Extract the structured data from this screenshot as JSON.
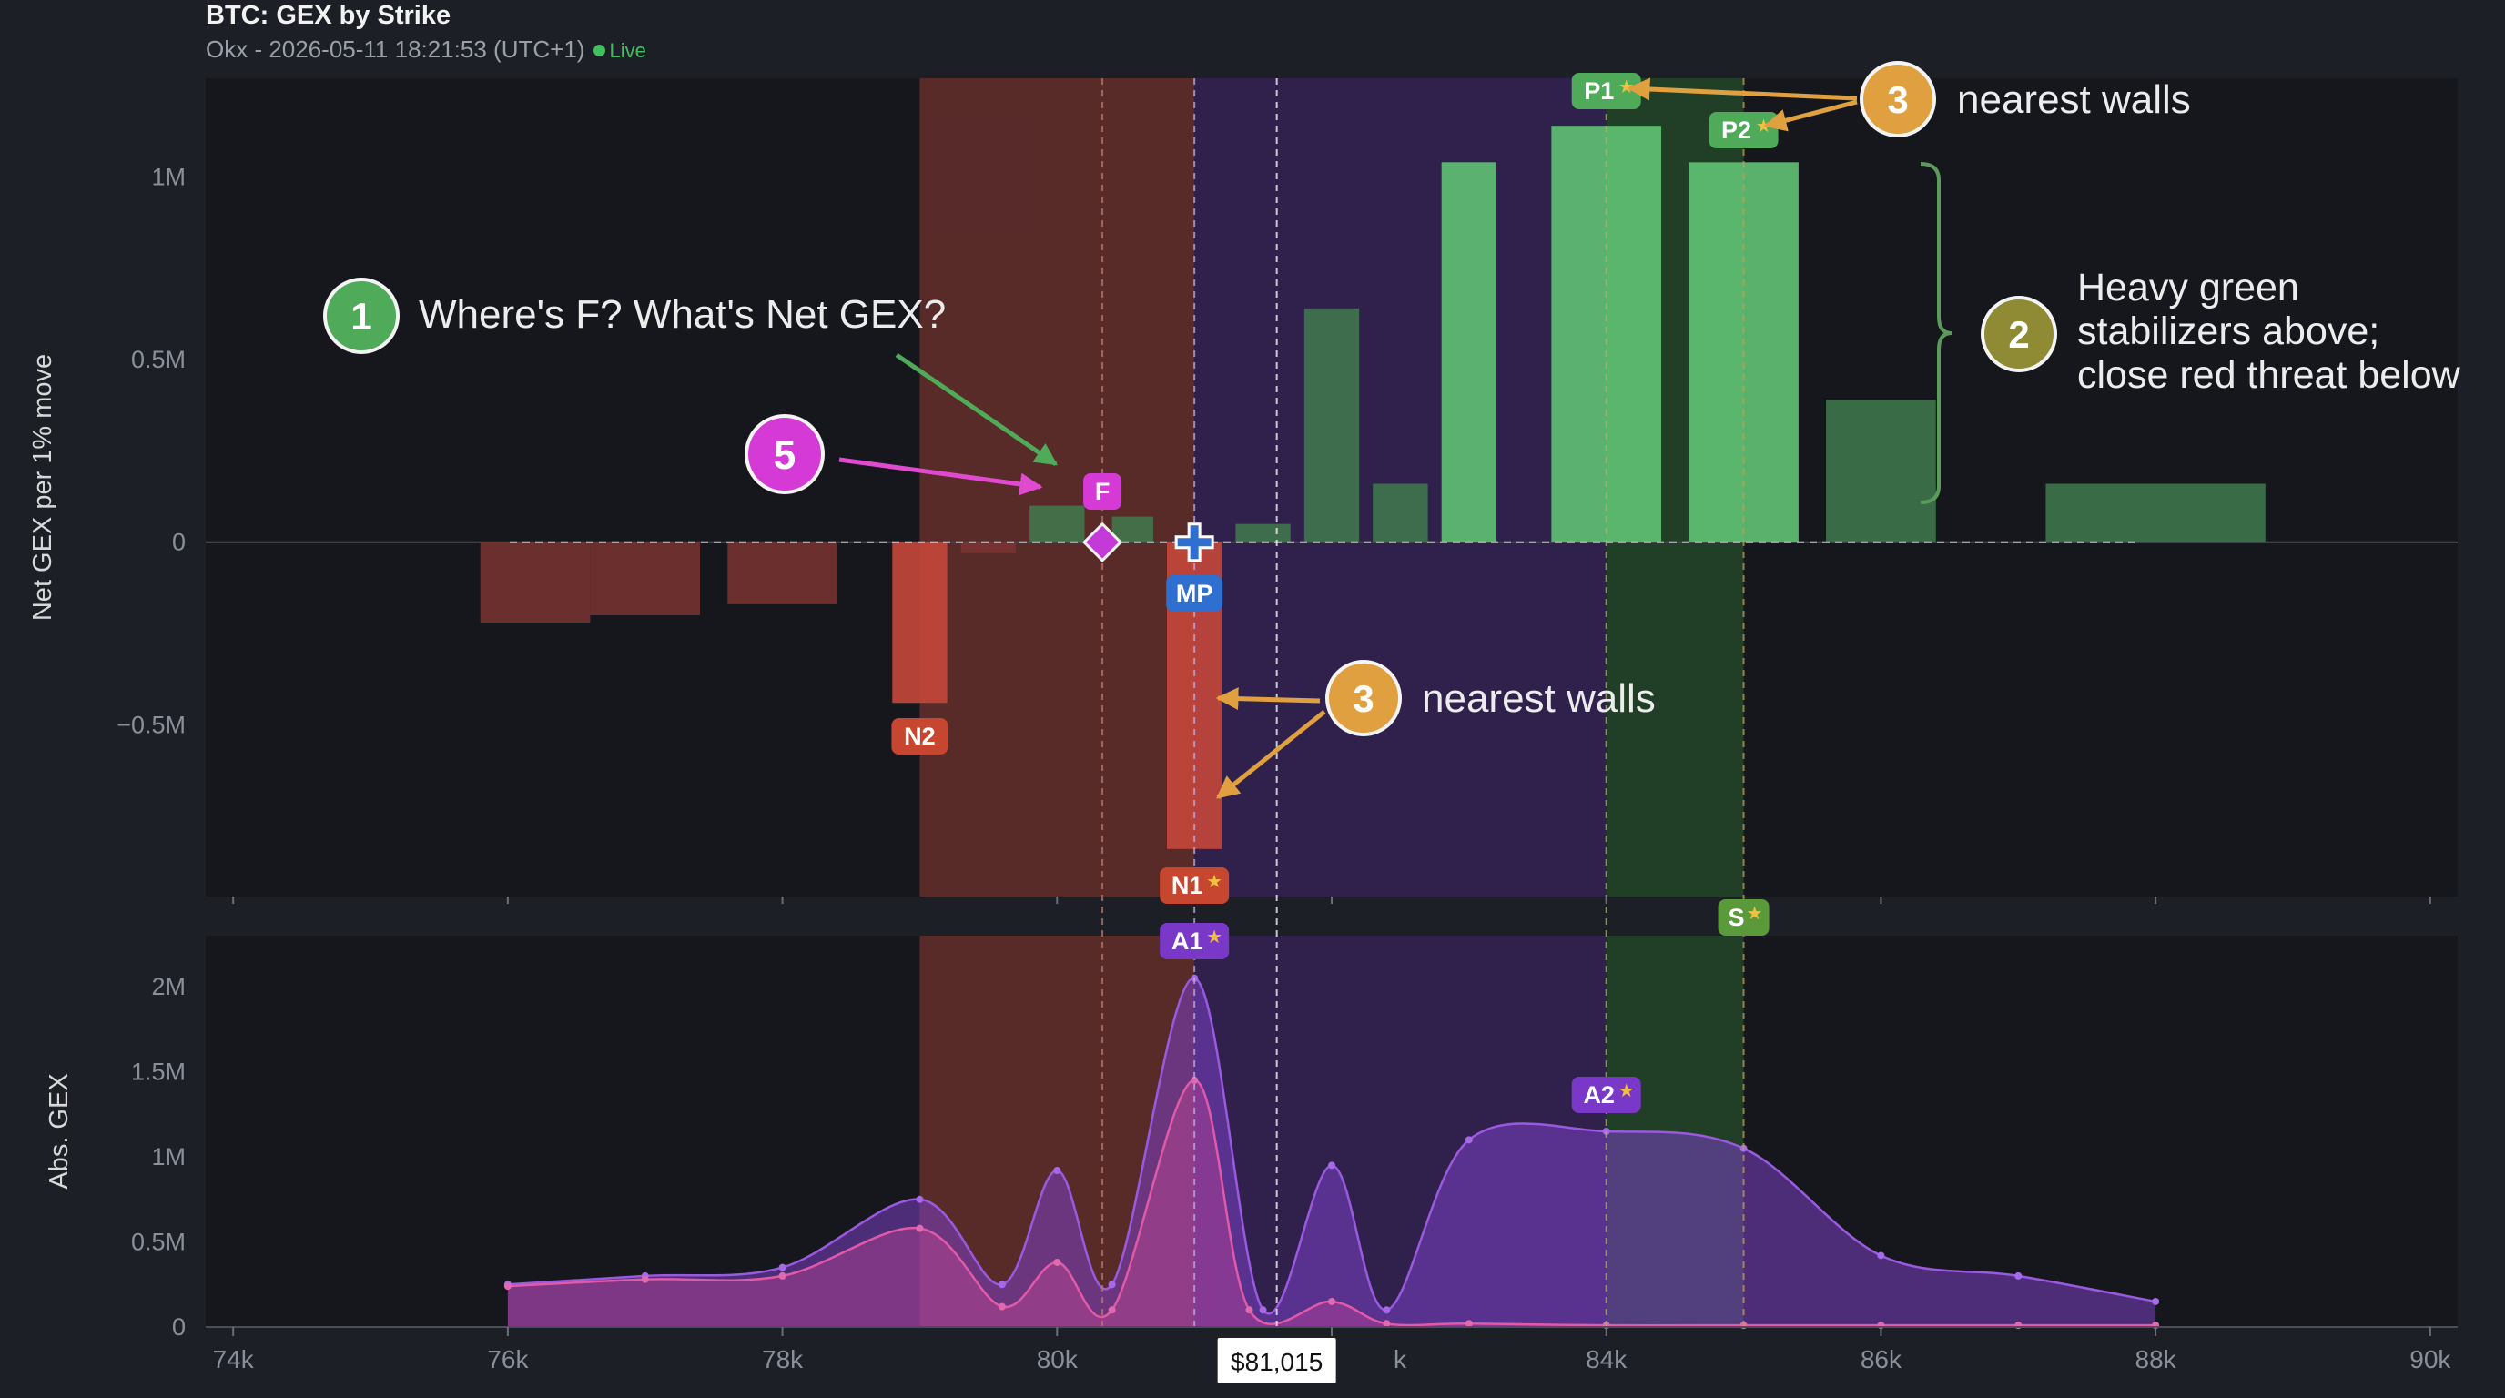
{
  "header": {
    "title": "BTC: GEX by Strike",
    "subtitle": "Okx - 2026-05-11 18:21:53 (UTC+1)",
    "live": "Live"
  },
  "colors": {
    "bg": "#1c1f26",
    "plot_bg": "#15171c",
    "positive": "#5fbf73",
    "positive_dim": "#3f7a4e",
    "negative": "#b5443a",
    "negative_dim": "#7a3431",
    "purple": "#7b3fc4",
    "pink": "#d94a9a",
    "orange": "#e0a040",
    "green_badge": "#4faa5a",
    "gold_badge": "#9c8d3a",
    "magenta": "#d63ad6"
  },
  "chart_data": [
    {
      "type": "bar",
      "ylabel": "Net GEX per 1% move",
      "ylim": [
        -0.97,
        1.27
      ],
      "yticks": [
        {
          "value": 1.0,
          "label": "1M"
        },
        {
          "value": 0.5,
          "label": "0.5M"
        },
        {
          "value": 0.0,
          "label": "0"
        },
        {
          "value": -0.5,
          "label": "−0.5M"
        }
      ],
      "unit": "M",
      "bars": [
        {
          "x0": 75.8,
          "x1": 76.6,
          "value": -0.22,
          "tone": "neg_dim"
        },
        {
          "x0": 76.6,
          "x1": 77.4,
          "value": -0.2,
          "tone": "neg_dim"
        },
        {
          "x0": 77.6,
          "x1": 78.4,
          "value": -0.17,
          "tone": "neg_dim"
        },
        {
          "x0": 78.8,
          "x1": 79.2,
          "value": -0.44,
          "tone": "neg"
        },
        {
          "x0": 79.3,
          "x1": 79.7,
          "value": -0.03,
          "tone": "neg_dim"
        },
        {
          "x0": 79.8,
          "x1": 80.2,
          "value": 0.1,
          "tone": "pos_dim"
        },
        {
          "x0": 80.4,
          "x1": 80.7,
          "value": 0.07,
          "tone": "pos_dim"
        },
        {
          "x0": 80.8,
          "x1": 81.2,
          "value": -0.84,
          "tone": "neg"
        },
        {
          "x0": 81.3,
          "x1": 81.7,
          "value": 0.05,
          "tone": "pos_dim"
        },
        {
          "x0": 81.8,
          "x1": 82.2,
          "value": 0.64,
          "tone": "pos_dim"
        },
        {
          "x0": 82.3,
          "x1": 82.7,
          "value": 0.16,
          "tone": "pos_dim"
        },
        {
          "x0": 82.8,
          "x1": 83.2,
          "value": 1.04,
          "tone": "pos"
        },
        {
          "x0": 83.6,
          "x1": 84.4,
          "value": 1.14,
          "tone": "pos"
        },
        {
          "x0": 84.6,
          "x1": 85.4,
          "value": 1.04,
          "tone": "pos"
        },
        {
          "x0": 85.6,
          "x1": 86.4,
          "value": 0.39,
          "tone": "pos_dim"
        },
        {
          "x0": 87.2,
          "x1": 88.8,
          "value": 0.16,
          "tone": "pos_dim"
        }
      ]
    },
    {
      "type": "area",
      "ylabel": "Abs. GEX",
      "ylim": [
        0,
        2.3
      ],
      "yticks": [
        {
          "value": 2.0,
          "label": "2M"
        },
        {
          "value": 1.5,
          "label": "1.5M"
        },
        {
          "value": 1.0,
          "label": "1M"
        },
        {
          "value": 0.5,
          "label": "0.5M"
        },
        {
          "value": 0.0,
          "label": "0"
        }
      ],
      "unit": "M",
      "series": [
        {
          "key": "total",
          "x": [
            76,
            77,
            78,
            79,
            79.6,
            80,
            80.4,
            81,
            81.5,
            82,
            82.4,
            83,
            84,
            85,
            86,
            87,
            88
          ],
          "y": [
            0.25,
            0.3,
            0.35,
            0.75,
            0.25,
            0.92,
            0.25,
            2.05,
            0.1,
            0.95,
            0.1,
            1.1,
            1.15,
            1.05,
            0.42,
            0.3,
            0.15
          ]
        },
        {
          "key": "negative",
          "x": [
            76,
            77,
            78,
            79,
            79.6,
            80,
            80.4,
            81,
            81.4,
            82,
            82.4,
            83,
            84,
            85,
            86,
            87,
            88
          ],
          "y": [
            0.24,
            0.28,
            0.3,
            0.58,
            0.12,
            0.38,
            0.1,
            1.45,
            0.1,
            0.15,
            0.02,
            0.02,
            0.01,
            0.01,
            0.01,
            0.01,
            0.01
          ]
        }
      ]
    }
  ],
  "x_axis": {
    "min": 73.8,
    "max": 90.2,
    "ticks": [
      {
        "value": 74,
        "label": "74k"
      },
      {
        "value": 76,
        "label": "76k"
      },
      {
        "value": 78,
        "label": "78k"
      },
      {
        "value": 80,
        "label": "80k"
      },
      {
        "value": 82,
        "label": "k"
      },
      {
        "value": 84,
        "label": "84k"
      },
      {
        "value": 86,
        "label": "86k"
      },
      {
        "value": 88,
        "label": "88k"
      },
      {
        "value": 90,
        "label": "90k"
      }
    ],
    "spot": 81.015,
    "spot_label": "$81,015"
  },
  "regions": [
    {
      "x0": 79.0,
      "x1": 81.0,
      "tone": "red"
    },
    {
      "x0": 81.0,
      "x1": 84.0,
      "tone": "purple"
    },
    {
      "x0": 84.0,
      "x1": 85.0,
      "tone": "green"
    }
  ],
  "levels": [
    {
      "key": "F",
      "label": "F",
      "x": 80.33,
      "value": 0.0
    },
    {
      "key": "MP",
      "label": "MP",
      "x": 81.0,
      "value": 0.0
    },
    {
      "key": "N1",
      "label": "N1",
      "x": 81.0,
      "starred": true
    },
    {
      "key": "N2",
      "label": "N2",
      "x": 79.0,
      "starred": false
    },
    {
      "key": "P1",
      "label": "P1",
      "x": 84.0,
      "starred": true
    },
    {
      "key": "P2",
      "label": "P2",
      "x": 85.0,
      "starred": true
    },
    {
      "key": "S",
      "label": "S",
      "x": 85.0,
      "starred": true
    },
    {
      "key": "A1",
      "label": "A1",
      "x": 81.0,
      "starred": true
    },
    {
      "key": "A2",
      "label": "A2",
      "x": 84.0,
      "starred": true
    }
  ],
  "annotations": [
    {
      "num": "1",
      "text": [
        "Where's F? What's Net GEX?"
      ]
    },
    {
      "num": "2",
      "text": [
        "Heavy green",
        "stabilizers above;",
        "close red threat below"
      ]
    },
    {
      "num": "3",
      "text": [
        "nearest walls"
      ]
    },
    {
      "num": "3",
      "text": [
        "nearest walls"
      ]
    },
    {
      "num": "5",
      "text": []
    }
  ]
}
